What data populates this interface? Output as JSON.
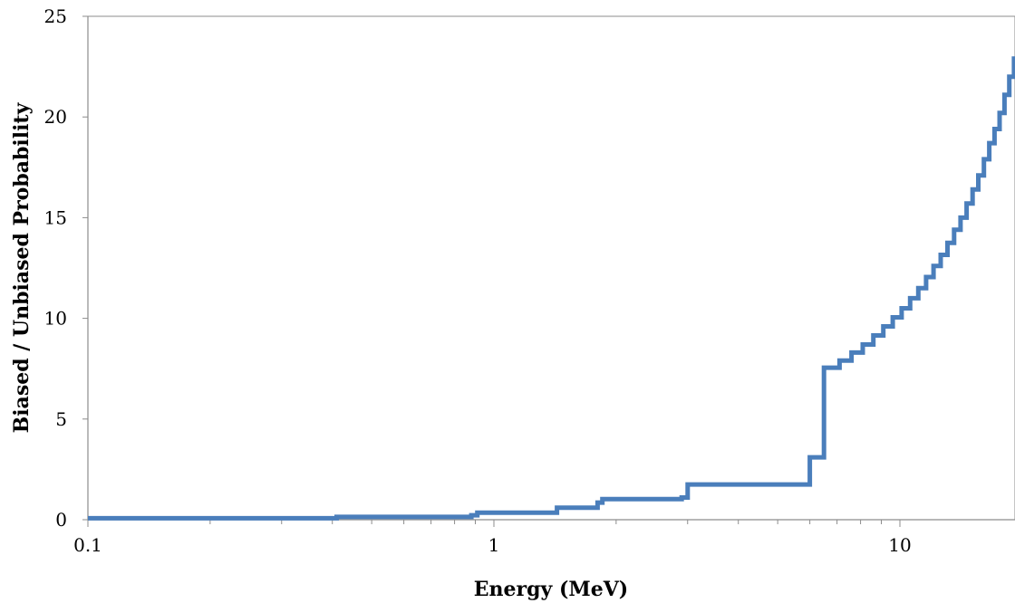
{
  "chart_data": {
    "type": "line",
    "title": "",
    "xlabel": "Energy (MeV)",
    "ylabel": "Biased / Unbiased Probability",
    "x_scale": "log",
    "xlim": [
      0.1,
      20
    ],
    "ylim": [
      0,
      25
    ],
    "x_ticks": [
      0.1,
      1,
      10
    ],
    "x_tick_labels": [
      "0.1",
      "1",
      "10"
    ],
    "y_ticks": [
      0,
      5,
      10,
      15,
      20,
      25
    ],
    "y_tick_labels": [
      "0",
      "5",
      "10",
      "15",
      "20",
      "25"
    ],
    "grid": false,
    "legend": "none",
    "colors": {
      "series": "#4a7ebb",
      "axis": "#8c8c8c"
    },
    "series": [
      {
        "step": true,
        "points": [
          [
            0.1,
            0.07
          ],
          [
            0.41,
            0.07
          ],
          [
            0.41,
            0.14
          ],
          [
            0.88,
            0.14
          ],
          [
            0.88,
            0.22
          ],
          [
            0.91,
            0.22
          ],
          [
            0.91,
            0.35
          ],
          [
            1.43,
            0.35
          ],
          [
            1.43,
            0.6
          ],
          [
            1.8,
            0.6
          ],
          [
            1.8,
            0.85
          ],
          [
            1.85,
            0.85
          ],
          [
            1.85,
            1.02
          ],
          [
            2.9,
            1.02
          ],
          [
            2.9,
            1.1
          ],
          [
            3.0,
            1.1
          ],
          [
            3.0,
            1.75
          ],
          [
            6.0,
            1.75
          ],
          [
            6.0,
            3.1
          ],
          [
            6.5,
            3.1
          ],
          [
            6.5,
            7.55
          ],
          [
            7.1,
            7.55
          ],
          [
            7.1,
            7.9
          ],
          [
            7.6,
            7.9
          ],
          [
            7.6,
            8.3
          ],
          [
            8.1,
            8.3
          ],
          [
            8.1,
            8.7
          ],
          [
            8.6,
            8.7
          ],
          [
            8.6,
            9.15
          ],
          [
            9.1,
            9.15
          ],
          [
            9.1,
            9.6
          ],
          [
            9.6,
            9.6
          ],
          [
            9.6,
            10.05
          ],
          [
            10.1,
            10.05
          ],
          [
            10.1,
            10.5
          ],
          [
            10.6,
            10.5
          ],
          [
            10.6,
            11.0
          ],
          [
            11.1,
            11.0
          ],
          [
            11.1,
            11.5
          ],
          [
            11.6,
            11.5
          ],
          [
            11.6,
            12.05
          ],
          [
            12.1,
            12.05
          ],
          [
            12.1,
            12.6
          ],
          [
            12.6,
            12.6
          ],
          [
            12.6,
            13.15
          ],
          [
            13.1,
            13.15
          ],
          [
            13.1,
            13.75
          ],
          [
            13.6,
            13.75
          ],
          [
            13.6,
            14.4
          ],
          [
            14.1,
            14.4
          ],
          [
            14.1,
            15.0
          ],
          [
            14.6,
            15.0
          ],
          [
            14.6,
            15.7
          ],
          [
            15.1,
            15.7
          ],
          [
            15.1,
            16.4
          ],
          [
            15.6,
            16.4
          ],
          [
            15.6,
            17.1
          ],
          [
            16.1,
            17.1
          ],
          [
            16.1,
            17.9
          ],
          [
            16.6,
            17.9
          ],
          [
            16.6,
            18.7
          ],
          [
            17.1,
            18.7
          ],
          [
            17.1,
            19.4
          ],
          [
            17.6,
            19.4
          ],
          [
            17.6,
            20.2
          ],
          [
            18.1,
            20.2
          ],
          [
            18.1,
            21.1
          ],
          [
            18.6,
            21.1
          ],
          [
            18.6,
            22.0
          ],
          [
            19.1,
            22.0
          ],
          [
            19.1,
            22.9
          ],
          [
            20.0,
            22.9
          ]
        ]
      }
    ]
  }
}
